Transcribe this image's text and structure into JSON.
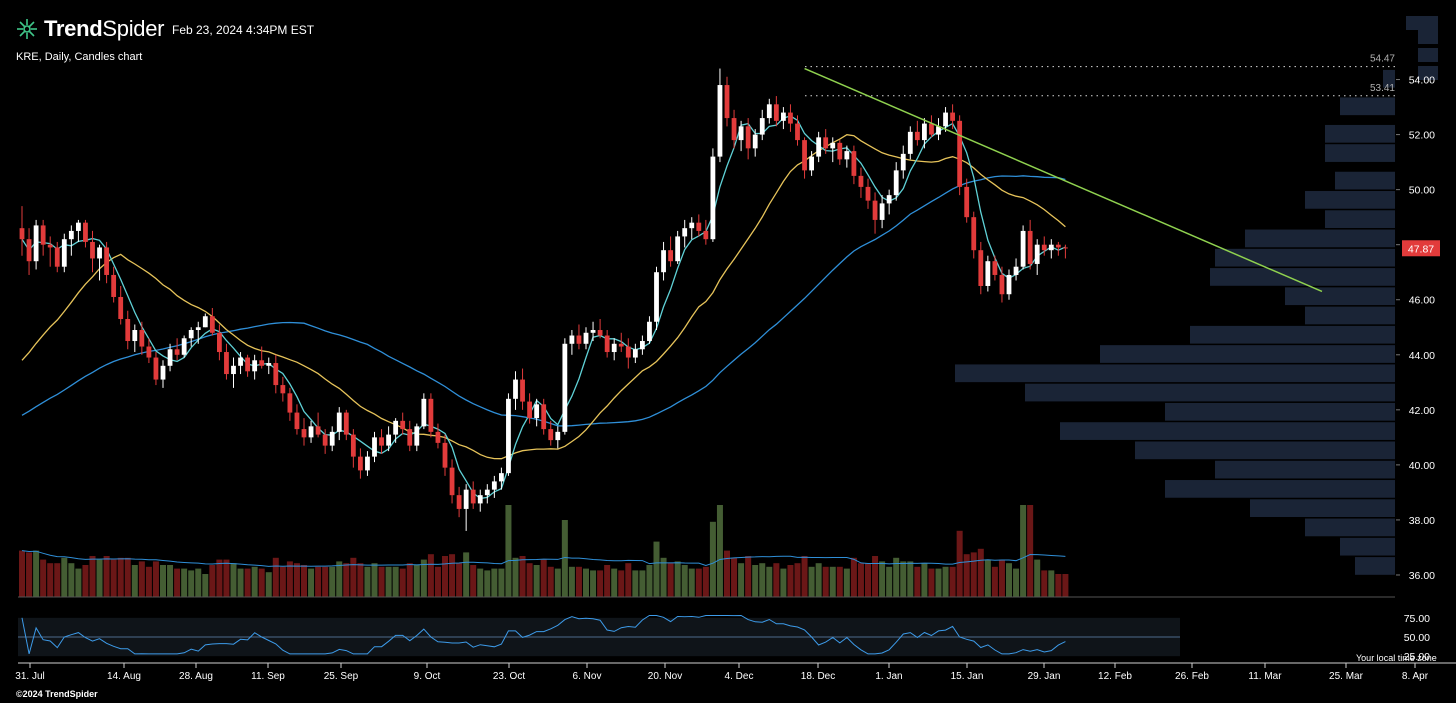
{
  "header": {
    "brand_part1": "Trend",
    "brand_part2": "Spider",
    "timestamp": "Feb 23, 2024 4:34PM EST",
    "subtitle": "KRE, Daily, Candles chart",
    "copyright": "©2024 TrendSpider",
    "timezone_note": "Your local time zone",
    "brand_color": "#3fc78a"
  },
  "chart_data": {
    "type": "candlestick",
    "symbol": "KRE",
    "timeframe": "Daily",
    "x_ticks": [
      "31. Jul",
      "14. Aug",
      "28. Aug",
      "11. Sep",
      "25. Sep",
      "9. Oct",
      "23. Oct",
      "6. Nov",
      "20. Nov",
      "4. Dec",
      "18. Dec",
      "1. Jan",
      "15. Jan",
      "29. Jan",
      "12. Feb",
      "26. Feb",
      "11. Mar",
      "25. Mar",
      "8. Apr"
    ],
    "price_axis": {
      "ticks": [
        36,
        38,
        40,
        42,
        44,
        46,
        48,
        50,
        52,
        54
      ],
      "ylim": [
        35.2,
        55.8
      ]
    },
    "oscillator_axis": {
      "ticks": [
        25,
        50,
        75
      ],
      "ylim": [
        20,
        80
      ]
    },
    "last_price": 47.87,
    "levels": [
      {
        "label": "54.47",
        "value": 54.47
      },
      {
        "label": "53.41",
        "value": 53.41
      }
    ],
    "ohlc": [
      [
        48.6,
        49.4,
        47.6,
        48.2
      ],
      [
        48.2,
        48.6,
        46.9,
        47.4
      ],
      [
        47.4,
        48.9,
        47.1,
        48.7
      ],
      [
        48.7,
        48.9,
        47.6,
        48.0
      ],
      [
        48.0,
        48.3,
        47.2,
        47.9
      ],
      [
        47.9,
        48.1,
        47.0,
        47.2
      ],
      [
        47.2,
        48.4,
        47.0,
        48.2
      ],
      [
        48.2,
        48.7,
        47.6,
        48.5
      ],
      [
        48.5,
        48.9,
        48.1,
        48.8
      ],
      [
        48.8,
        48.9,
        47.9,
        48.1
      ],
      [
        48.1,
        48.5,
        47.0,
        47.5
      ],
      [
        47.5,
        48.0,
        46.7,
        47.9
      ],
      [
        47.9,
        48.1,
        46.6,
        46.9
      ],
      [
        46.9,
        47.2,
        45.9,
        46.1
      ],
      [
        46.1,
        46.5,
        45.1,
        45.3
      ],
      [
        45.3,
        45.6,
        44.2,
        44.5
      ],
      [
        44.5,
        45.1,
        44.1,
        44.9
      ],
      [
        44.9,
        45.2,
        44.0,
        44.3
      ],
      [
        44.3,
        44.6,
        43.7,
        43.9
      ],
      [
        43.9,
        44.1,
        42.9,
        43.1
      ],
      [
        43.1,
        43.8,
        42.8,
        43.6
      ],
      [
        43.6,
        44.4,
        43.4,
        44.2
      ],
      [
        44.2,
        44.6,
        43.8,
        44.0
      ],
      [
        44.0,
        44.7,
        43.9,
        44.6
      ],
      [
        44.6,
        45.0,
        44.3,
        44.9
      ],
      [
        44.9,
        45.2,
        44.4,
        45.0
      ],
      [
        45.0,
        45.5,
        45.0,
        45.4
      ],
      [
        45.4,
        45.7,
        44.7,
        44.8
      ],
      [
        44.8,
        45.1,
        43.8,
        44.1
      ],
      [
        44.1,
        44.4,
        43.1,
        43.3
      ],
      [
        43.3,
        43.9,
        42.8,
        43.6
      ],
      [
        43.6,
        44.1,
        43.3,
        43.9
      ],
      [
        43.9,
        44.0,
        43.2,
        43.4
      ],
      [
        43.4,
        44.0,
        43.1,
        43.8
      ],
      [
        43.8,
        44.3,
        43.5,
        43.6
      ],
      [
        43.6,
        43.9,
        43.3,
        43.7
      ],
      [
        43.7,
        44.0,
        42.6,
        42.9
      ],
      [
        42.9,
        43.2,
        42.3,
        42.6
      ],
      [
        42.6,
        42.8,
        41.6,
        41.9
      ],
      [
        41.9,
        42.2,
        41.1,
        41.3
      ],
      [
        41.3,
        41.7,
        40.7,
        41.0
      ],
      [
        41.0,
        41.6,
        40.8,
        41.4
      ],
      [
        41.4,
        41.9,
        41.0,
        41.1
      ],
      [
        41.1,
        41.3,
        40.4,
        40.7
      ],
      [
        40.7,
        41.4,
        40.5,
        41.2
      ],
      [
        41.2,
        42.1,
        40.9,
        41.9
      ],
      [
        41.9,
        42.0,
        40.9,
        41.1
      ],
      [
        41.1,
        41.3,
        39.9,
        40.3
      ],
      [
        40.3,
        40.6,
        39.5,
        39.8
      ],
      [
        39.8,
        40.5,
        39.6,
        40.3
      ],
      [
        40.3,
        41.2,
        40.1,
        41.0
      ],
      [
        41.0,
        41.3,
        40.4,
        40.7
      ],
      [
        40.7,
        41.4,
        40.5,
        41.1
      ],
      [
        41.1,
        41.7,
        40.8,
        41.6
      ],
      [
        41.6,
        41.9,
        41.1,
        41.3
      ],
      [
        41.3,
        41.6,
        40.5,
        40.7
      ],
      [
        40.7,
        41.5,
        40.5,
        41.4
      ],
      [
        41.4,
        42.6,
        41.3,
        42.4
      ],
      [
        42.4,
        42.6,
        41.0,
        41.2
      ],
      [
        41.2,
        41.5,
        40.6,
        40.8
      ],
      [
        40.8,
        41.1,
        39.6,
        39.9
      ],
      [
        39.9,
        40.2,
        38.6,
        38.9
      ],
      [
        38.9,
        39.2,
        38.1,
        38.4
      ],
      [
        38.4,
        39.3,
        37.6,
        39.1
      ],
      [
        39.1,
        39.4,
        38.4,
        38.6
      ],
      [
        38.6,
        39.1,
        38.3,
        38.9
      ],
      [
        38.9,
        39.3,
        38.6,
        39.1
      ],
      [
        39.1,
        39.6,
        38.8,
        39.4
      ],
      [
        39.4,
        39.9,
        39.1,
        39.7
      ],
      [
        39.7,
        42.6,
        39.6,
        42.4
      ],
      [
        42.4,
        43.4,
        42.0,
        43.1
      ],
      [
        43.1,
        43.5,
        42.0,
        42.3
      ],
      [
        42.3,
        42.6,
        41.5,
        41.7
      ],
      [
        41.7,
        42.4,
        41.4,
        42.2
      ],
      [
        42.2,
        42.4,
        41.1,
        41.3
      ],
      [
        41.3,
        41.6,
        40.7,
        40.9
      ],
      [
        40.9,
        41.4,
        40.6,
        41.2
      ],
      [
        41.2,
        44.6,
        41.1,
        44.4
      ],
      [
        44.4,
        44.9,
        44.0,
        44.7
      ],
      [
        44.7,
        45.1,
        44.2,
        44.4
      ],
      [
        44.4,
        45.0,
        44.2,
        44.8
      ],
      [
        44.8,
        45.2,
        44.5,
        44.9
      ],
      [
        44.9,
        45.3,
        44.6,
        44.7
      ],
      [
        44.7,
        44.9,
        43.9,
        44.1
      ],
      [
        44.1,
        44.6,
        43.8,
        44.4
      ],
      [
        44.4,
        44.8,
        44.1,
        44.3
      ],
      [
        44.3,
        44.6,
        43.5,
        43.9
      ],
      [
        43.9,
        44.4,
        43.7,
        44.2
      ],
      [
        44.2,
        44.7,
        44.0,
        44.5
      ],
      [
        44.5,
        45.4,
        44.4,
        45.2
      ],
      [
        45.2,
        47.2,
        44.9,
        47.0
      ],
      [
        47.0,
        48.1,
        46.7,
        47.8
      ],
      [
        47.8,
        48.3,
        47.2,
        47.4
      ],
      [
        47.4,
        48.5,
        47.3,
        48.3
      ],
      [
        48.3,
        48.9,
        47.9,
        48.6
      ],
      [
        48.6,
        49.0,
        48.2,
        48.8
      ],
      [
        48.8,
        49.1,
        48.3,
        48.5
      ],
      [
        48.5,
        48.9,
        48.0,
        48.2
      ],
      [
        48.2,
        51.5,
        48.1,
        51.2
      ],
      [
        51.2,
        54.4,
        51.0,
        53.8
      ],
      [
        53.8,
        54.1,
        52.3,
        52.6
      ],
      [
        52.6,
        52.9,
        51.5,
        51.8
      ],
      [
        51.8,
        52.5,
        51.4,
        52.3
      ],
      [
        52.3,
        52.6,
        51.1,
        51.5
      ],
      [
        51.5,
        52.2,
        51.2,
        52.0
      ],
      [
        52.0,
        52.9,
        51.8,
        52.6
      ],
      [
        52.6,
        53.3,
        52.4,
        53.1
      ],
      [
        53.1,
        53.4,
        52.3,
        52.5
      ],
      [
        52.5,
        53.0,
        52.2,
        52.8
      ],
      [
        52.8,
        53.1,
        52.1,
        52.4
      ],
      [
        52.4,
        52.7,
        51.6,
        51.8
      ],
      [
        51.8,
        51.9,
        50.4,
        50.7
      ],
      [
        50.7,
        51.4,
        50.5,
        51.2
      ],
      [
        51.2,
        52.1,
        51.0,
        51.9
      ],
      [
        51.9,
        52.2,
        51.3,
        51.5
      ],
      [
        51.5,
        51.9,
        51.0,
        51.7
      ],
      [
        51.7,
        51.8,
        50.9,
        51.1
      ],
      [
        51.1,
        51.6,
        50.8,
        51.4
      ],
      [
        51.4,
        51.6,
        50.2,
        50.5
      ],
      [
        50.5,
        50.8,
        49.7,
        50.1
      ],
      [
        50.1,
        50.4,
        49.3,
        49.6
      ],
      [
        49.6,
        49.9,
        48.4,
        48.9
      ],
      [
        48.9,
        49.8,
        48.6,
        49.5
      ],
      [
        49.5,
        50.0,
        49.1,
        49.8
      ],
      [
        49.8,
        51.0,
        49.6,
        50.7
      ],
      [
        50.7,
        51.6,
        50.4,
        51.3
      ],
      [
        51.3,
        52.3,
        51.1,
        52.1
      ],
      [
        52.1,
        52.5,
        51.6,
        51.8
      ],
      [
        51.8,
        52.6,
        51.5,
        52.4
      ],
      [
        52.4,
        52.7,
        51.9,
        52.0
      ],
      [
        52.0,
        52.6,
        51.8,
        52.3
      ],
      [
        52.3,
        53.0,
        52.1,
        52.8
      ],
      [
        52.8,
        53.1,
        52.2,
        52.5
      ],
      [
        52.5,
        52.7,
        49.8,
        50.1
      ],
      [
        50.1,
        50.4,
        48.8,
        49.0
      ],
      [
        49.0,
        49.2,
        47.5,
        47.8
      ],
      [
        47.8,
        48.1,
        46.2,
        46.5
      ],
      [
        46.5,
        47.6,
        46.3,
        47.4
      ],
      [
        47.4,
        47.6,
        46.7,
        46.9
      ],
      [
        46.9,
        47.2,
        45.9,
        46.2
      ],
      [
        46.2,
        47.1,
        46.0,
        46.9
      ],
      [
        46.9,
        47.5,
        46.7,
        47.2
      ],
      [
        47.2,
        48.7,
        47.1,
        48.5
      ],
      [
        48.5,
        48.9,
        47.1,
        47.3
      ],
      [
        47.3,
        48.2,
        46.9,
        48.0
      ],
      [
        48.0,
        48.3,
        47.6,
        47.8
      ],
      [
        47.8,
        48.2,
        47.5,
        48.0
      ],
      [
        48.0,
        48.1,
        47.6,
        47.9
      ],
      [
        47.9,
        48.0,
        47.5,
        47.87
      ]
    ],
    "volume_profile_note": "horizontal volume-by-price bars on right side",
    "colors": {
      "up": "#ffffff",
      "down": "#e23b3b",
      "sma_fast": "#5fd1d6",
      "sma_mid": "#e6c35a",
      "sma_slow": "#2f8fd8",
      "trendline": "#8fd14f",
      "vol_up": "#445d33",
      "vol_down": "#6b1717",
      "profile": "#1a2436",
      "price_badge": "#e23b3b"
    }
  }
}
